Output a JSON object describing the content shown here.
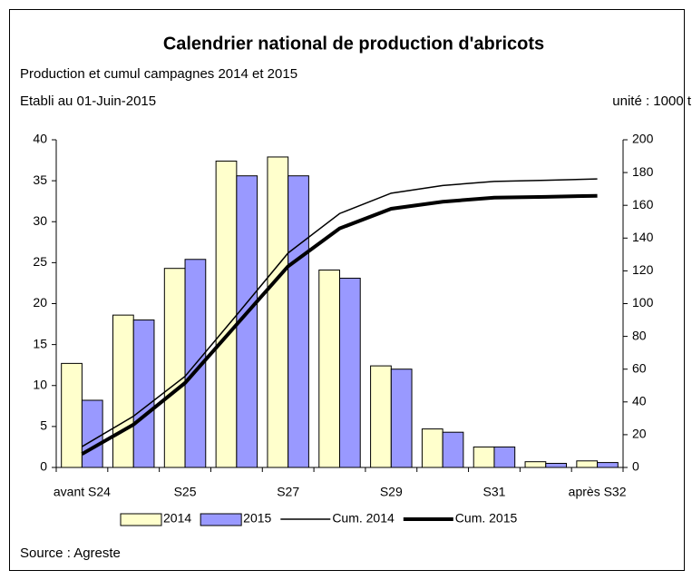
{
  "chart_data": {
    "type": "bar",
    "title": "Calendrier national de production d'abricots",
    "subtitle": "Production et cumul campagnes 2014 et 2015",
    "date_note": "Etabli au 01-Juin-2015",
    "unit_note": "unité : 1000 t",
    "source": "Source : Agreste",
    "categories": [
      "avant S24",
      null,
      "S25",
      null,
      "S27",
      null,
      "S29",
      null,
      "S31",
      null,
      "après S32"
    ],
    "series": [
      {
        "name": "2014",
        "type": "bar",
        "color": "#ffffcc",
        "values": [
          12.7,
          18.6,
          24.3,
          37.4,
          37.9,
          24.1,
          12.4,
          4.7,
          2.5,
          0.7,
          0.8
        ]
      },
      {
        "name": "2015",
        "type": "bar",
        "color": "#9999ff",
        "values": [
          8.2,
          18.0,
          25.4,
          35.6,
          35.6,
          23.1,
          12.0,
          4.3,
          2.5,
          0.5,
          0.6
        ]
      },
      {
        "name": "Cum. 2014",
        "type": "line",
        "axis": "y2",
        "color": "#000000",
        "width": 1.5,
        "values": [
          12.7,
          31.3,
          55.6,
          93.0,
          130.9,
          155.0,
          167.4,
          172.1,
          174.6,
          175.3,
          176.1
        ]
      },
      {
        "name": "Cum. 2015",
        "type": "line",
        "axis": "y2",
        "color": "#000000",
        "width": 4,
        "values": [
          8.2,
          26.2,
          51.6,
          87.2,
          122.8,
          145.9,
          157.9,
          162.2,
          164.7,
          165.2,
          165.8
        ]
      }
    ],
    "ylim": [
      0,
      40
    ],
    "yticks": [
      0,
      5,
      10,
      15,
      20,
      25,
      30,
      35,
      40
    ],
    "y2lim": [
      0,
      200
    ],
    "y2ticks": [
      0,
      20,
      40,
      60,
      80,
      100,
      120,
      140,
      160,
      180,
      200
    ],
    "grid": false,
    "legend": "bottom"
  }
}
